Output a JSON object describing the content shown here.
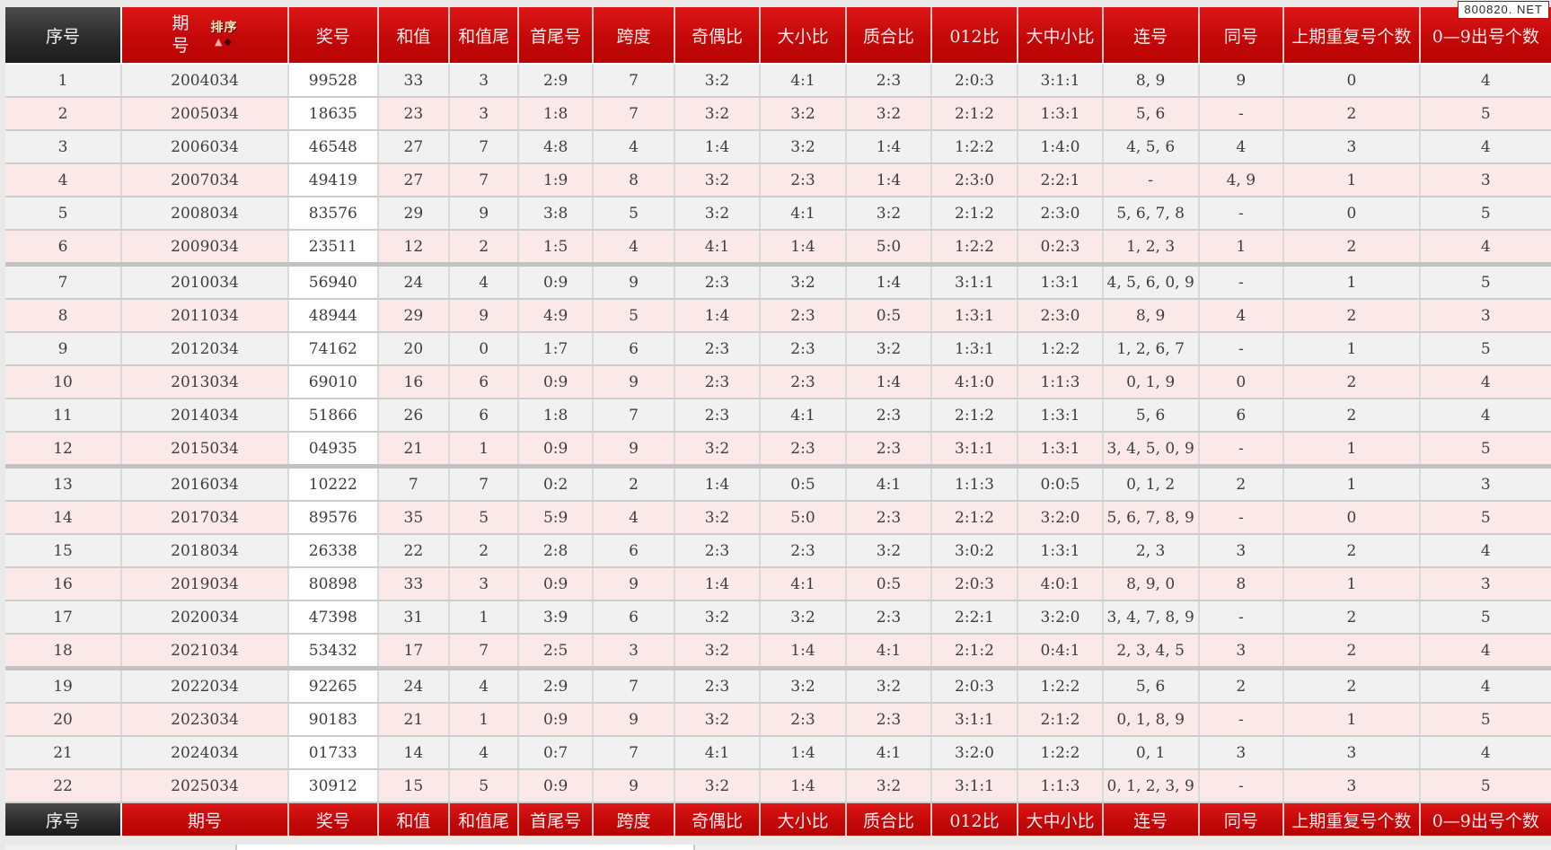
{
  "badge": "800820. NET",
  "sort": {
    "label": "排序",
    "asc_icon": "▲",
    "desc_icon": "◆"
  },
  "colors": {
    "header_red": "#c40808",
    "header_dark": "#2c2c2c",
    "row_odd": "#f2f1f1",
    "row_even": "#fbe9e9",
    "prize_cell": "#ffffff"
  },
  "table": {
    "columns": [
      "序号",
      "期号",
      "奖号",
      "和值",
      "和值尾",
      "首尾号",
      "跨度",
      "奇偶比",
      "大小比",
      "质合比",
      "012比",
      "大中小比",
      "连号",
      "同号",
      "上期重复号个数",
      "0—9出号个数"
    ],
    "group_separators_after": [
      6,
      12,
      18
    ],
    "rows": [
      [
        "1",
        "2004034",
        "99528",
        "33",
        "3",
        "2:9",
        "7",
        "3:2",
        "4:1",
        "2:3",
        "2:0:3",
        "3:1:1",
        "8, 9",
        "9",
        "0",
        "4"
      ],
      [
        "2",
        "2005034",
        "18635",
        "23",
        "3",
        "1:8",
        "7",
        "3:2",
        "3:2",
        "3:2",
        "2:1:2",
        "1:3:1",
        "5, 6",
        "-",
        "2",
        "5"
      ],
      [
        "3",
        "2006034",
        "46548",
        "27",
        "7",
        "4:8",
        "4",
        "1:4",
        "3:2",
        "1:4",
        "1:2:2",
        "1:4:0",
        "4, 5, 6",
        "4",
        "3",
        "4"
      ],
      [
        "4",
        "2007034",
        "49419",
        "27",
        "7",
        "1:9",
        "8",
        "3:2",
        "2:3",
        "1:4",
        "2:3:0",
        "2:2:1",
        "-",
        "4, 9",
        "1",
        "3"
      ],
      [
        "5",
        "2008034",
        "83576",
        "29",
        "9",
        "3:8",
        "5",
        "3:2",
        "4:1",
        "3:2",
        "2:1:2",
        "2:3:0",
        "5, 6, 7, 8",
        "-",
        "0",
        "5"
      ],
      [
        "6",
        "2009034",
        "23511",
        "12",
        "2",
        "1:5",
        "4",
        "4:1",
        "1:4",
        "5:0",
        "1:2:2",
        "0:2:3",
        "1, 2, 3",
        "1",
        "2",
        "4"
      ],
      [
        "7",
        "2010034",
        "56940",
        "24",
        "4",
        "0:9",
        "9",
        "2:3",
        "3:2",
        "1:4",
        "3:1:1",
        "1:3:1",
        "4, 5, 6, 0, 9",
        "-",
        "1",
        "5"
      ],
      [
        "8",
        "2011034",
        "48944",
        "29",
        "9",
        "4:9",
        "5",
        "1:4",
        "2:3",
        "0:5",
        "1:3:1",
        "2:3:0",
        "8, 9",
        "4",
        "2",
        "3"
      ],
      [
        "9",
        "2012034",
        "74162",
        "20",
        "0",
        "1:7",
        "6",
        "2:3",
        "2:3",
        "3:2",
        "1:3:1",
        "1:2:2",
        "1, 2, 6, 7",
        "-",
        "1",
        "5"
      ],
      [
        "10",
        "2013034",
        "69010",
        "16",
        "6",
        "0:9",
        "9",
        "2:3",
        "2:3",
        "1:4",
        "4:1:0",
        "1:1:3",
        "0, 1, 9",
        "0",
        "2",
        "4"
      ],
      [
        "11",
        "2014034",
        "51866",
        "26",
        "6",
        "1:8",
        "7",
        "2:3",
        "4:1",
        "2:3",
        "2:1:2",
        "1:3:1",
        "5, 6",
        "6",
        "2",
        "4"
      ],
      [
        "12",
        "2015034",
        "04935",
        "21",
        "1",
        "0:9",
        "9",
        "3:2",
        "2:3",
        "2:3",
        "3:1:1",
        "1:3:1",
        "3, 4, 5, 0, 9",
        "-",
        "1",
        "5"
      ],
      [
        "13",
        "2016034",
        "10222",
        "7",
        "7",
        "0:2",
        "2",
        "1:4",
        "0:5",
        "4:1",
        "1:1:3",
        "0:0:5",
        "0, 1, 2",
        "2",
        "1",
        "3"
      ],
      [
        "14",
        "2017034",
        "89576",
        "35",
        "5",
        "5:9",
        "4",
        "3:2",
        "5:0",
        "2:3",
        "2:1:2",
        "3:2:0",
        "5, 6, 7, 8, 9",
        "-",
        "0",
        "5"
      ],
      [
        "15",
        "2018034",
        "26338",
        "22",
        "2",
        "2:8",
        "6",
        "2:3",
        "2:3",
        "3:2",
        "3:0:2",
        "1:3:1",
        "2, 3",
        "3",
        "2",
        "4"
      ],
      [
        "16",
        "2019034",
        "80898",
        "33",
        "3",
        "0:9",
        "9",
        "1:4",
        "4:1",
        "0:5",
        "2:0:3",
        "4:0:1",
        "8, 9, 0",
        "8",
        "1",
        "3"
      ],
      [
        "17",
        "2020034",
        "47398",
        "31",
        "1",
        "3:9",
        "6",
        "3:2",
        "3:2",
        "2:3",
        "2:2:1",
        "3:2:0",
        "3, 4, 7, 8, 9",
        "-",
        "2",
        "5"
      ],
      [
        "18",
        "2021034",
        "53432",
        "17",
        "7",
        "2:5",
        "3",
        "3:2",
        "1:4",
        "4:1",
        "2:1:2",
        "0:4:1",
        "2, 3, 4, 5",
        "3",
        "2",
        "4"
      ],
      [
        "19",
        "2022034",
        "92265",
        "24",
        "4",
        "2:9",
        "7",
        "2:3",
        "3:2",
        "3:2",
        "2:0:3",
        "1:2:2",
        "5, 6",
        "2",
        "2",
        "4"
      ],
      [
        "20",
        "2023034",
        "90183",
        "21",
        "1",
        "0:9",
        "9",
        "3:2",
        "2:3",
        "2:3",
        "3:1:1",
        "2:1:2",
        "0, 1, 8, 9",
        "-",
        "1",
        "5"
      ],
      [
        "21",
        "2024034",
        "01733",
        "14",
        "4",
        "0:7",
        "7",
        "4:1",
        "1:4",
        "4:1",
        "3:2:0",
        "1:2:2",
        "0, 1",
        "3",
        "3",
        "4"
      ],
      [
        "22",
        "2025034",
        "30912",
        "15",
        "5",
        "0:9",
        "9",
        "3:2",
        "1:4",
        "3:2",
        "3:1:1",
        "1:1:3",
        "0, 1, 2, 3, 9",
        "-",
        "3",
        "5"
      ]
    ]
  }
}
